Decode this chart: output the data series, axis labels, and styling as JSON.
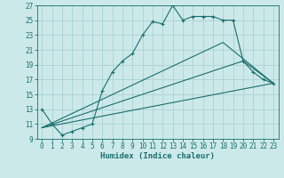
{
  "xlabel": "Humidex (Indice chaleur)",
  "bg_color": "#cce9e9",
  "grid_color": "#b0d4d4",
  "line_color": "#1a6e6e",
  "xlim": [
    -0.5,
    23.5
  ],
  "ylim": [
    9,
    27
  ],
  "yticks": [
    9,
    11,
    13,
    15,
    17,
    19,
    21,
    23,
    25,
    27
  ],
  "xticks": [
    0,
    1,
    2,
    3,
    4,
    5,
    6,
    7,
    8,
    9,
    10,
    11,
    12,
    13,
    14,
    15,
    16,
    17,
    18,
    19,
    20,
    21,
    22,
    23
  ],
  "series1_x": [
    0,
    1,
    2,
    3,
    4,
    5,
    6,
    7,
    8,
    9,
    10,
    11,
    12,
    13,
    14,
    15,
    16,
    17,
    18,
    19,
    20,
    21,
    22,
    23
  ],
  "series1_y": [
    13,
    11,
    9.5,
    10,
    10.5,
    11,
    15.5,
    18,
    19.5,
    20.5,
    23,
    24.8,
    24.5,
    27,
    25,
    25.5,
    25.5,
    25.5,
    25,
    25,
    19.5,
    18,
    17,
    16.5
  ],
  "series2_x": [
    0,
    23
  ],
  "series2_y": [
    10.5,
    16.5
  ],
  "series3_x": [
    0,
    20,
    23
  ],
  "series3_y": [
    10.5,
    19.5,
    16.5
  ],
  "series4_x": [
    0,
    18,
    23
  ],
  "series4_y": [
    10.5,
    22,
    16.5
  ]
}
